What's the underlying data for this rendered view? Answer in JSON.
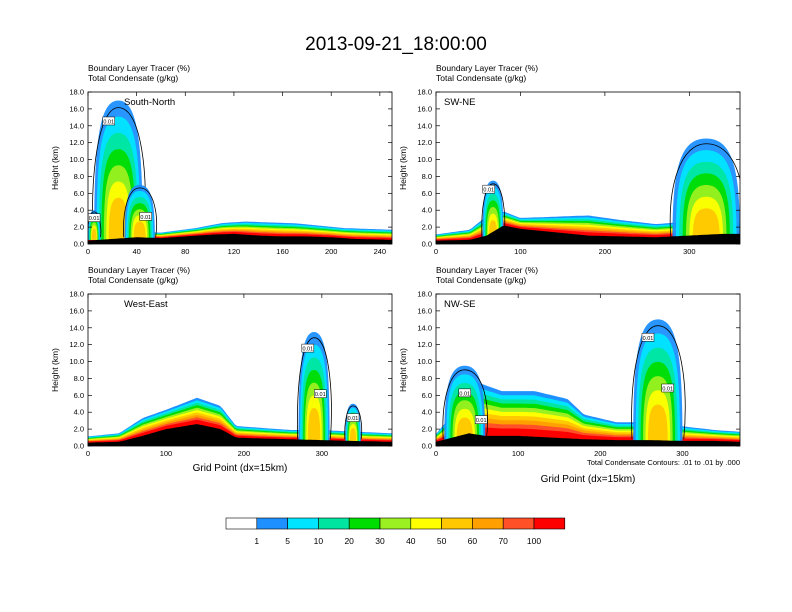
{
  "figure": {
    "title": "2013-09-21_18:00:00",
    "footnote": "Total Condensate Contours: .01 to .01 by .000"
  },
  "colors": {
    "levels": [
      "#ffffff",
      "#1e90ff",
      "#00e5ff",
      "#00e6a0",
      "#00dd00",
      "#9af020",
      "#ffff00",
      "#ffc800",
      "#ffa000",
      "#ff5028",
      "#ff0000"
    ],
    "contour": "#000000",
    "terrain": "#000000"
  },
  "colorbar": {
    "labels": [
      "1",
      "5",
      "10",
      "20",
      "30",
      "40",
      "50",
      "60",
      "70",
      "100"
    ]
  },
  "chart_data": [
    {
      "type": "heatmap",
      "title": "South-North",
      "label_line1": "Boundary Layer Tracer   (%)",
      "label_line2": "Total Condensate   (g/kg)",
      "ylabel": "Height (km)",
      "xlabel": "",
      "xlim": [
        0,
        250
      ],
      "ylim": [
        0,
        18
      ],
      "xticks": [
        "0",
        "40",
        "80",
        "120",
        "160",
        "200",
        "240"
      ],
      "yticks": [
        "0.0",
        "2.0",
        "4.0",
        "6.0",
        "8.0",
        "10.0",
        "12.0",
        "14.0",
        "16.0",
        "18.0"
      ],
      "contour_labels": [
        "0.01",
        "0.01",
        "0.01"
      ],
      "marker_x": 124,
      "terrain": [
        [
          0,
          0.4
        ],
        [
          10,
          0.5
        ],
        [
          20,
          0.6
        ],
        [
          30,
          0.7
        ],
        [
          40,
          0.8
        ],
        [
          60,
          0.7
        ],
        [
          80,
          0.9
        ],
        [
          100,
          1.1
        ],
        [
          120,
          1.2
        ],
        [
          140,
          1.0
        ],
        [
          160,
          0.9
        ],
        [
          180,
          0.9
        ],
        [
          200,
          0.8
        ],
        [
          220,
          0.6
        ],
        [
          250,
          0.5
        ]
      ],
      "pbl_top": [
        [
          0,
          1.0
        ],
        [
          30,
          1.6
        ],
        [
          60,
          1.4
        ],
        [
          90,
          2.0
        ],
        [
          110,
          2.6
        ],
        [
          130,
          2.8
        ],
        [
          150,
          2.7
        ],
        [
          170,
          2.6
        ],
        [
          190,
          2.3
        ],
        [
          210,
          2.0
        ],
        [
          230,
          1.9
        ],
        [
          250,
          1.8
        ]
      ],
      "convection": [
        {
          "x": [
            5,
            45
          ],
          "top": 17.0
        },
        {
          "x": [
            0,
            10
          ],
          "top": 4.0
        },
        {
          "x": [
            30,
            55
          ],
          "top": 7.0
        }
      ]
    },
    {
      "type": "heatmap",
      "title": "SW-NE",
      "label_line1": "Boundary Layer Tracer   (%)",
      "label_line2": "Total Condensate   (g/kg)",
      "ylabel": "Height (km)",
      "xlabel": "",
      "xlim": [
        0,
        360
      ],
      "ylim": [
        0,
        18
      ],
      "xticks": [
        "0",
        "100",
        "200",
        "300"
      ],
      "yticks": [
        "0.0",
        "2.0",
        "4.0",
        "6.0",
        "8.0",
        "10.0",
        "12.0",
        "14.0",
        "16.0",
        "18.0"
      ],
      "contour_labels": [
        "0.01"
      ],
      "marker_x": 178,
      "terrain": [
        [
          0,
          0.4
        ],
        [
          40,
          0.5
        ],
        [
          60,
          1.0
        ],
        [
          80,
          2.2
        ],
        [
          100,
          1.8
        ],
        [
          140,
          1.4
        ],
        [
          180,
          1.0
        ],
        [
          220,
          0.9
        ],
        [
          260,
          0.8
        ],
        [
          300,
          1.0
        ],
        [
          340,
          1.2
        ],
        [
          360,
          1.2
        ]
      ],
      "pbl_top": [
        [
          0,
          1.2
        ],
        [
          40,
          1.8
        ],
        [
          60,
          3.5
        ],
        [
          80,
          4.0
        ],
        [
          100,
          3.2
        ],
        [
          140,
          3.4
        ],
        [
          180,
          3.6
        ],
        [
          220,
          3.0
        ],
        [
          260,
          2.5
        ],
        [
          300,
          2.8
        ],
        [
          330,
          3.0
        ],
        [
          360,
          2.5
        ]
      ],
      "convection": [
        {
          "x": [
            55,
            80
          ],
          "top": 7.5
        },
        {
          "x": [
            280,
            360
          ],
          "top": 12.5
        }
      ]
    },
    {
      "type": "heatmap",
      "title": "West-East",
      "label_line1": "Boundary Layer Tracer   (%)",
      "label_line2": "Total Condensate   (g/kg)",
      "ylabel": "Height (km)",
      "xlabel": "Grid Point (dx=15km)",
      "xlim": [
        0,
        390
      ],
      "ylim": [
        0,
        18
      ],
      "xticks": [
        "0",
        "100",
        "200",
        "300"
      ],
      "yticks": [
        "0.0",
        "2.0",
        "4.0",
        "6.0",
        "8.0",
        "10.0",
        "12.0",
        "14.0",
        "16.0",
        "18.0"
      ],
      "contour_labels": [
        "0.01",
        "0.01",
        "0.01"
      ],
      "marker_x": 190,
      "terrain": [
        [
          0,
          0.4
        ],
        [
          40,
          0.5
        ],
        [
          70,
          1.2
        ],
        [
          100,
          2.0
        ],
        [
          140,
          2.6
        ],
        [
          170,
          2.0
        ],
        [
          190,
          1.0
        ],
        [
          220,
          0.9
        ],
        [
          260,
          0.8
        ],
        [
          300,
          0.7
        ],
        [
          340,
          0.6
        ],
        [
          390,
          0.5
        ]
      ],
      "pbl_top": [
        [
          0,
          1.2
        ],
        [
          40,
          1.6
        ],
        [
          70,
          3.5
        ],
        [
          100,
          4.5
        ],
        [
          140,
          6.0
        ],
        [
          170,
          5.0
        ],
        [
          190,
          2.5
        ],
        [
          230,
          2.2
        ],
        [
          260,
          2.0
        ],
        [
          300,
          2.0
        ],
        [
          340,
          1.8
        ],
        [
          390,
          1.6
        ]
      ],
      "convection": [
        {
          "x": [
            270,
            310
          ],
          "top": 13.5
        },
        {
          "x": [
            330,
            350
          ],
          "top": 5.0
        }
      ]
    },
    {
      "type": "heatmap",
      "title": "NW-SE",
      "label_line1": "Boundary Layer Tracer   (%)",
      "label_line2": "Total Condensate   (g/kg)",
      "ylabel": "Height (km)",
      "xlabel": "Grid Point (dx=15km)",
      "xlim": [
        0,
        370
      ],
      "ylim": [
        0,
        18
      ],
      "xticks": [
        "0",
        "100",
        "200",
        "300"
      ],
      "yticks": [
        "0.0",
        "2.0",
        "4.0",
        "6.0",
        "8.0",
        "10.0",
        "12.0",
        "14.0",
        "16.0",
        "18.0"
      ],
      "contour_labels": [
        "0.01",
        "0.01",
        "0.01",
        "0.01"
      ],
      "marker_x": 185,
      "terrain": [
        [
          0,
          0.5
        ],
        [
          20,
          1.0
        ],
        [
          40,
          1.5
        ],
        [
          60,
          1.2
        ],
        [
          100,
          1.2
        ],
        [
          140,
          1.0
        ],
        [
          180,
          0.8
        ],
        [
          220,
          0.7
        ],
        [
          260,
          0.7
        ],
        [
          300,
          0.6
        ],
        [
          340,
          0.6
        ],
        [
          370,
          0.5
        ]
      ],
      "pbl_top": [
        [
          0,
          1.5
        ],
        [
          20,
          4.0
        ],
        [
          40,
          8.5
        ],
        [
          80,
          7.0
        ],
        [
          120,
          7.0
        ],
        [
          160,
          6.0
        ],
        [
          180,
          4.0
        ],
        [
          220,
          3.0
        ],
        [
          260,
          3.0
        ],
        [
          300,
          2.5
        ],
        [
          340,
          2.0
        ],
        [
          370,
          1.8
        ]
      ],
      "convection": [
        {
          "x": [
            240,
            300
          ],
          "top": 15.0
        },
        {
          "x": [
            10,
            60
          ],
          "top": 9.5
        }
      ]
    }
  ]
}
